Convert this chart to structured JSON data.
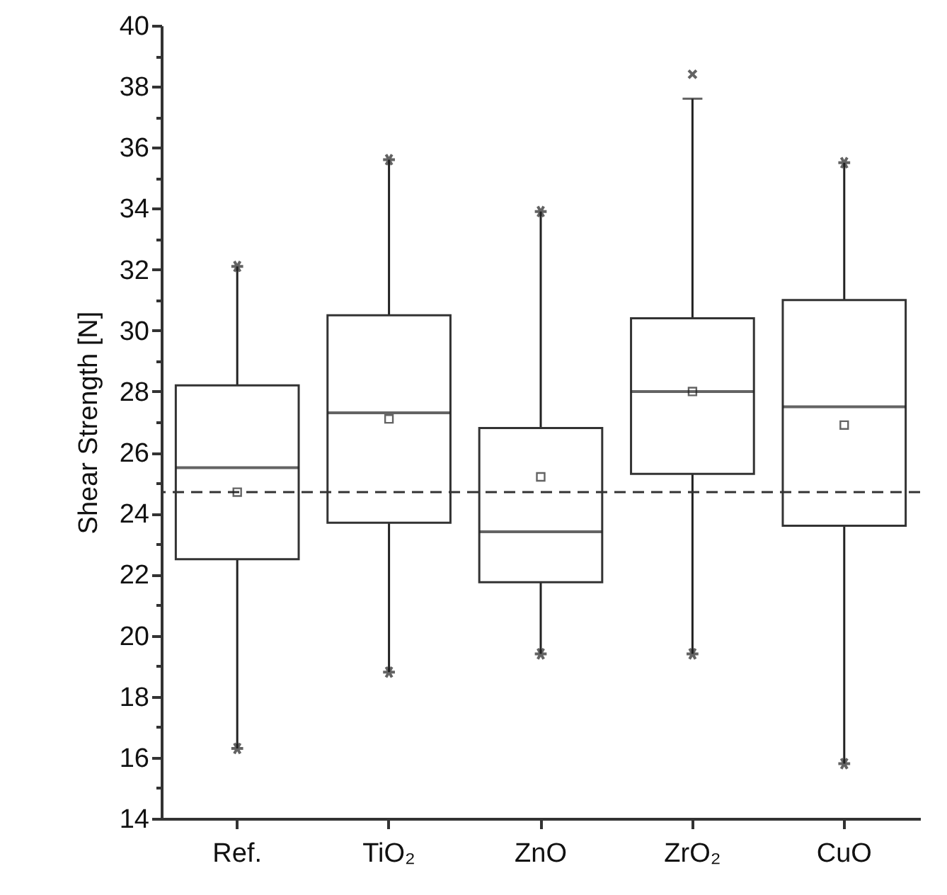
{
  "chart_data": {
    "type": "box",
    "ylabel": "Shear Strength [N]",
    "categories": [
      "Ref.",
      "TiO₂",
      "ZnO",
      "ZrO₂",
      "CuO"
    ],
    "boxes": [
      {
        "low": 16.3,
        "q1": 22.5,
        "median": 25.5,
        "q3": 28.2,
        "high": 32.1,
        "mean": 24.7
      },
      {
        "low": 18.8,
        "q1": 23.7,
        "median": 27.3,
        "q3": 30.5,
        "high": 35.6,
        "mean": 27.1
      },
      {
        "low": 19.4,
        "q1": 21.75,
        "median": 23.4,
        "q3": 26.8,
        "high": 33.9,
        "mean": 25.2
      },
      {
        "low": 19.4,
        "q1": 25.3,
        "median": 28.0,
        "q3": 30.4,
        "high": 37.6,
        "mean": 28.0,
        "outliers": [
          38.4
        ]
      },
      {
        "low": 15.8,
        "q1": 23.6,
        "median": 27.5,
        "q3": 31.0,
        "high": 35.5,
        "mean": 26.9
      }
    ],
    "ylim": [
      14,
      40
    ],
    "yticks": [
      14,
      {
        "value": 15,
        "label": null
      },
      16,
      {
        "value": 17,
        "label": null
      },
      18,
      {
        "value": 19,
        "label": null
      },
      20,
      {
        "value": 21,
        "label": null
      },
      22,
      {
        "value": 23,
        "label": null
      },
      24,
      {
        "value": 25,
        "label": null
      },
      26,
      {
        "value": 27,
        "label": null
      },
      28,
      {
        "value": 29,
        "label": null
      },
      30,
      {
        "value": 31,
        "label": null
      },
      32,
      {
        "value": 33,
        "label": null
      },
      34,
      {
        "value": 35,
        "label": null
      },
      36,
      {
        "value": 37,
        "label": null
      },
      38,
      {
        "value": 39,
        "label": null
      },
      40
    ],
    "ref_lines": [
      {
        "axis": "y",
        "value": 24.7,
        "line_style": "dashed"
      }
    ]
  }
}
